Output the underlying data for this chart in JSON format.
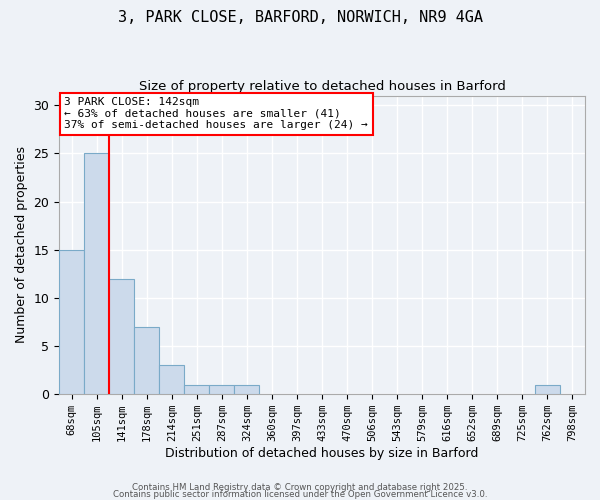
{
  "title_line1": "3, PARK CLOSE, BARFORD, NORWICH, NR9 4GA",
  "title_line2": "Size of property relative to detached houses in Barford",
  "xlabel": "Distribution of detached houses by size in Barford",
  "ylabel": "Number of detached properties",
  "bins": [
    "68sqm",
    "105sqm",
    "141sqm",
    "178sqm",
    "214sqm",
    "251sqm",
    "287sqm",
    "324sqm",
    "360sqm",
    "397sqm",
    "433sqm",
    "470sqm",
    "506sqm",
    "543sqm",
    "579sqm",
    "616sqm",
    "652sqm",
    "689sqm",
    "725sqm",
    "762sqm",
    "798sqm"
  ],
  "values": [
    15,
    25,
    12,
    7,
    3,
    1,
    1,
    1,
    0,
    0,
    0,
    0,
    0,
    0,
    0,
    0,
    0,
    0,
    0,
    1,
    0
  ],
  "bar_color": "#ccdaeb",
  "bar_edge_color": "#7aaac8",
  "red_line_bin_index": 2,
  "annotation_text_line1": "3 PARK CLOSE: 142sqm",
  "annotation_text_line2": "← 63% of detached houses are smaller (41)",
  "annotation_text_line3": "37% of semi-detached houses are larger (24) →",
  "annotation_box_color": "white",
  "annotation_box_edge": "red",
  "background_color": "#eef2f7",
  "grid_color": "white",
  "ylim": [
    0,
    31
  ],
  "yticks": [
    0,
    5,
    10,
    15,
    20,
    25,
    30
  ],
  "footer_line1": "Contains HM Land Registry data © Crown copyright and database right 2025.",
  "footer_line2": "Contains public sector information licensed under the Open Government Licence v3.0."
}
